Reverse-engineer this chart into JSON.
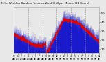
{
  "bg_color": "#e8e8e8",
  "plot_bg_color": "#e8e8e8",
  "temp_color": "#0000cc",
  "wind_chill_color": "#dd0000",
  "grid_color": "#888888",
  "ylim": [
    5,
    57
  ],
  "yticks": [
    10,
    20,
    30,
    40,
    50
  ],
  "n_points": 1440,
  "legend_temp_color": "#0000cc",
  "legend_wc_color": "#dd0000",
  "title_color": "#000000",
  "tick_color": "#000000"
}
